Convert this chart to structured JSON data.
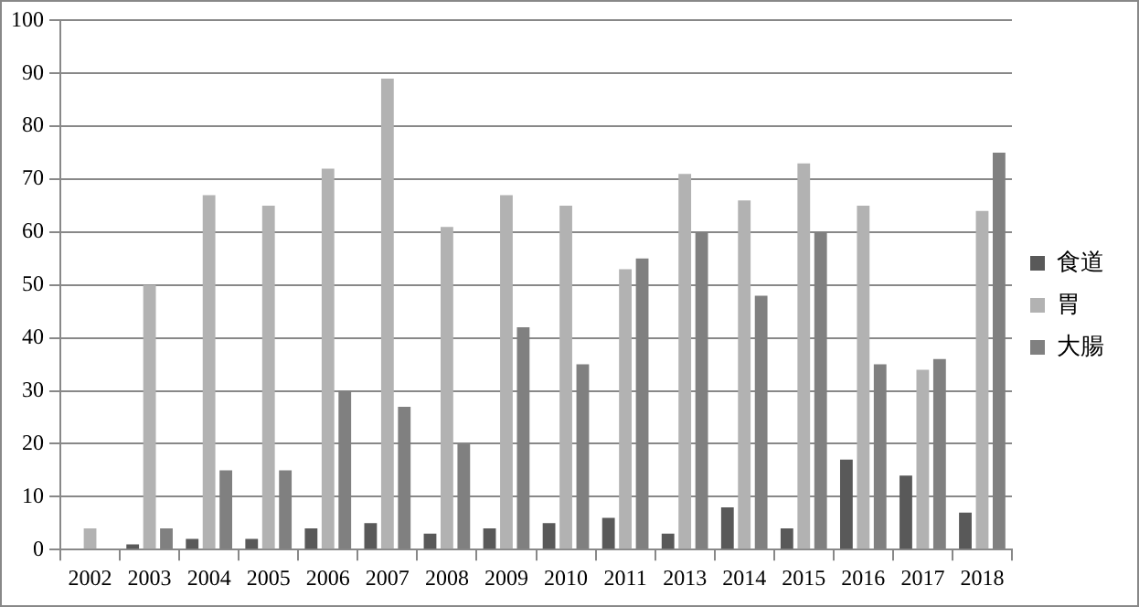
{
  "chart_data": {
    "type": "bar",
    "categories": [
      "2002",
      "2003",
      "2004",
      "2005",
      "2006",
      "2007",
      "2008",
      "2009",
      "2010",
      "2011",
      "2013",
      "2014",
      "2015",
      "2016",
      "2017",
      "2018"
    ],
    "series": [
      {
        "name": "食道",
        "color": "#595959",
        "values": [
          0,
          1,
          2,
          2,
          4,
          5,
          3,
          4,
          5,
          6,
          3,
          8,
          4,
          17,
          14,
          7
        ]
      },
      {
        "name": "胃",
        "color": "#b2b2b2",
        "values": [
          4,
          50,
          67,
          65,
          72,
          89,
          61,
          67,
          65,
          53,
          71,
          66,
          73,
          65,
          34,
          64
        ]
      },
      {
        "name": "大腸",
        "color": "#808080",
        "values": [
          0,
          4,
          15,
          15,
          30,
          27,
          20,
          42,
          35,
          55,
          60,
          48,
          60,
          35,
          36,
          75
        ]
      }
    ],
    "ylim": [
      0,
      100
    ],
    "yticks": [
      0,
      10,
      20,
      30,
      40,
      50,
      60,
      70,
      80,
      90,
      100
    ],
    "grid": "y",
    "legend": "right"
  }
}
